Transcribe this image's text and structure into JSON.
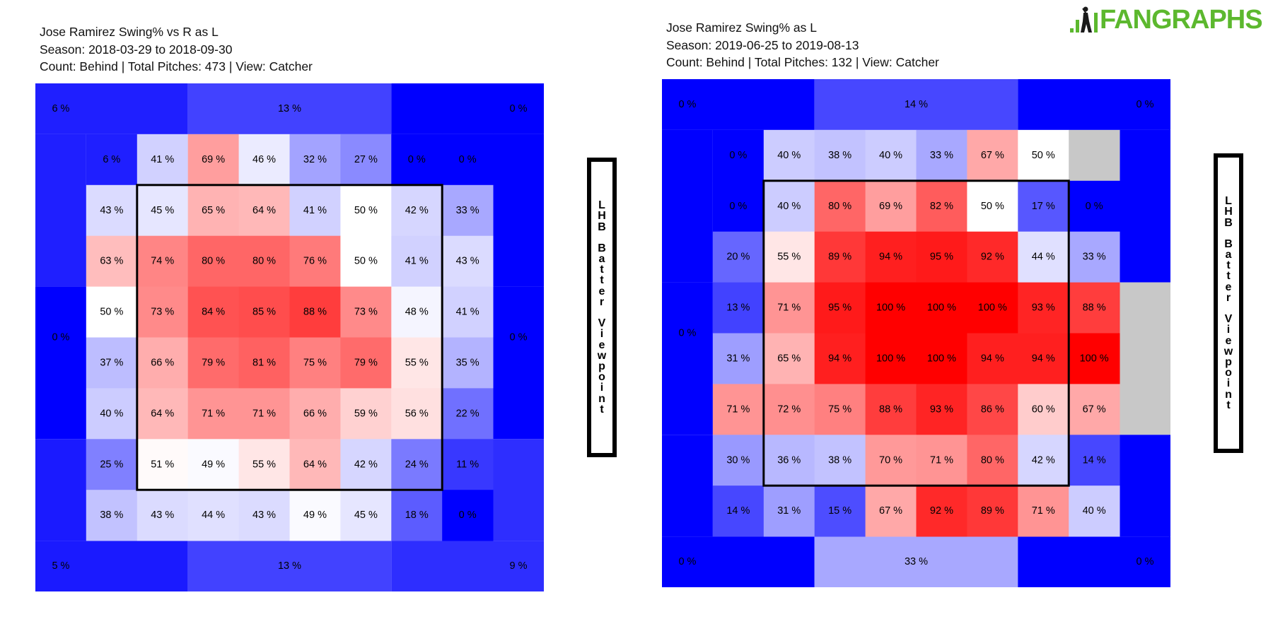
{
  "logo": {
    "text": "FANGRAPHS",
    "color": "#5cb82e"
  },
  "colors": {
    "min": "#0000ff",
    "mid": "#ffffff",
    "max": "#ff0000",
    "missing": "#c8c8c8"
  },
  "chart_data": [
    {
      "type": "heatmap",
      "title_lines": [
        "Jose Ramirez Swing% vs R as L",
        "Season: 2018-03-29 to 2018-09-30",
        "Count: Behind | Total Pitches: 473 | View: Catcher"
      ],
      "side_label": "LHB Batter Viewpoint",
      "unit": "%",
      "outer": {
        "top_left": 6,
        "top_mid": 13,
        "top_right": 0,
        "mid_left": 0,
        "mid_right": 0,
        "bottom_left": 5,
        "bottom_mid": 13,
        "bottom_right": 9
      },
      "grid": [
        [
          6,
          41,
          69,
          46,
          32,
          27,
          0,
          0
        ],
        [
          43,
          45,
          65,
          64,
          41,
          50,
          42,
          33
        ],
        [
          63,
          74,
          80,
          80,
          76,
          50,
          41,
          43
        ],
        [
          50,
          73,
          84,
          85,
          88,
          73,
          48,
          41
        ],
        [
          37,
          66,
          79,
          81,
          75,
          79,
          55,
          35
        ],
        [
          40,
          64,
          71,
          71,
          66,
          59,
          56,
          22
        ],
        [
          25,
          51,
          49,
          55,
          64,
          42,
          24,
          11
        ],
        [
          38,
          43,
          44,
          43,
          49,
          45,
          18,
          0
        ]
      ]
    },
    {
      "type": "heatmap",
      "title_lines": [
        "Jose Ramirez Swing% as L",
        "Season: 2019-06-25 to 2019-08-13",
        "Count: Behind | Total Pitches: 132 | View: Catcher"
      ],
      "side_label": "LHB Batter Viewpoint",
      "unit": "%",
      "outer": {
        "top_left": 0,
        "top_mid": 14,
        "top_right": 0,
        "mid_left": 0,
        "mid_right": null,
        "bottom_left": 0,
        "bottom_mid": 33,
        "bottom_right": 0
      },
      "grid": [
        [
          0,
          40,
          38,
          40,
          33,
          67,
          50,
          null
        ],
        [
          0,
          40,
          80,
          69,
          82,
          50,
          17,
          0
        ],
        [
          20,
          55,
          89,
          94,
          95,
          92,
          44,
          33
        ],
        [
          13,
          71,
          95,
          100,
          100,
          100,
          93,
          88
        ],
        [
          31,
          65,
          94,
          100,
          100,
          94,
          94,
          100
        ],
        [
          71,
          72,
          75,
          88,
          93,
          86,
          60,
          67
        ],
        [
          30,
          36,
          38,
          70,
          71,
          80,
          42,
          14
        ],
        [
          14,
          31,
          15,
          67,
          92,
          89,
          71,
          40
        ]
      ]
    }
  ]
}
